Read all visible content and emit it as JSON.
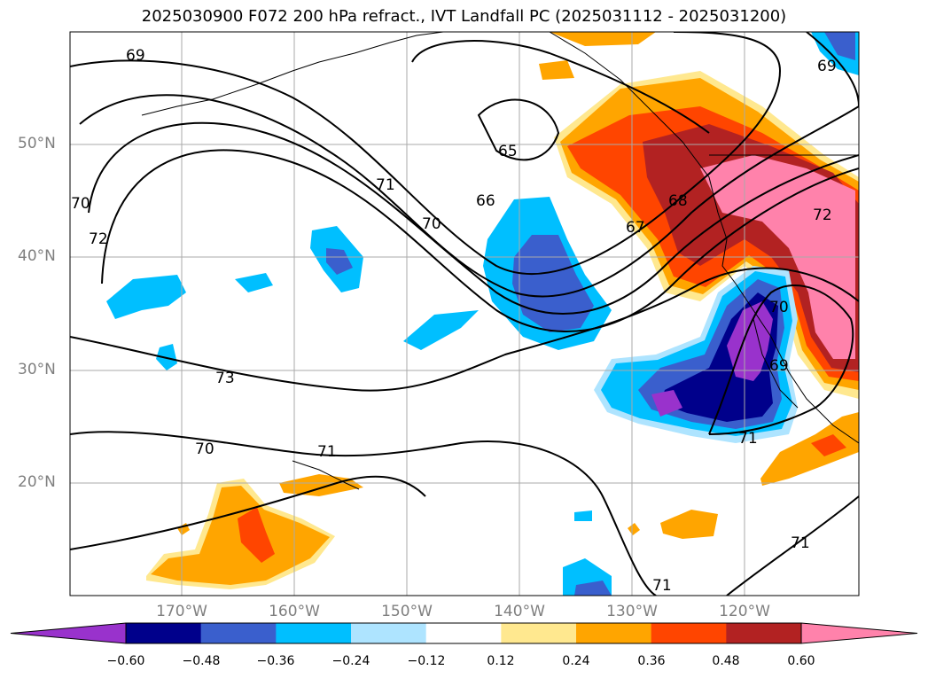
{
  "title": "2025030900 F072 200 hPa refract., IVT Landfall PC (2025031112 - 2025031200)",
  "lat_labels": [
    "50°N",
    "40°N",
    "30°N",
    "20°N"
  ],
  "lon_labels": [
    "170°W",
    "160°W",
    "150°W",
    "140°W",
    "130°W",
    "120°W"
  ],
  "contour_labels": [
    "69",
    "65",
    "66",
    "71",
    "70",
    "67",
    "68",
    "72",
    "70",
    "72",
    "73",
    "70",
    "71",
    "70",
    "69",
    "71",
    "71",
    "71",
    "69"
  ],
  "colorbar": {
    "ticks": [
      "−0.60",
      "−0.48",
      "−0.36",
      "−0.24",
      "−0.12",
      "0.12",
      "0.24",
      "0.36",
      "0.48",
      "0.60"
    ],
    "colors": [
      "#9932cc",
      "#00008b",
      "#3a5fcd",
      "#00bfff",
      "#aee4ff",
      "#ffffff",
      "#ffe88f",
      "#ffa500",
      "#ff4500",
      "#b22222",
      "#ff82ab"
    ]
  }
}
